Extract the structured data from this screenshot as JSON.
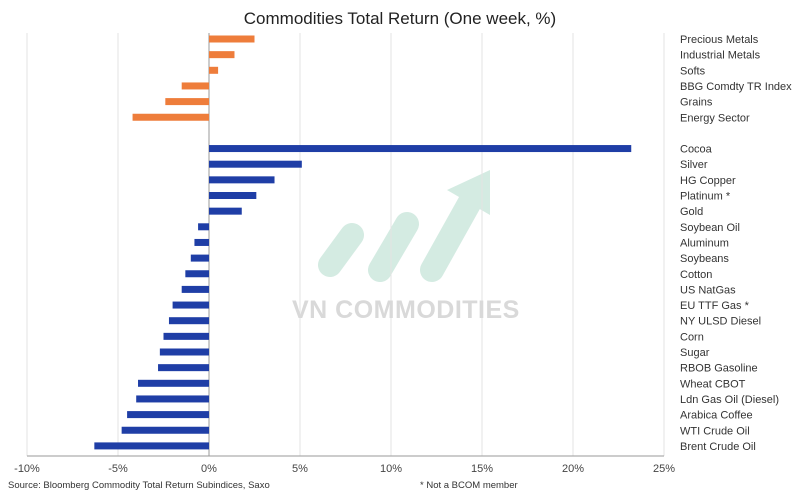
{
  "watermark_text": "VN COMMODITIES",
  "colors": {
    "group1": "#EE7D3B",
    "group2": "#1F3EA6",
    "grid": "#E3E3E3",
    "axis": "#9A9A9A",
    "watermark": "#D4EBE2"
  },
  "footer": {
    "source": "Source: Bloomberg Commodity Total Return Subindices, Saxo",
    "note": "* Not a BCOM member"
  },
  "chart_data": {
    "type": "bar",
    "orientation": "horizontal",
    "title": "Commodities Total Return (One week, %)",
    "xlim": [
      -10,
      25
    ],
    "x_ticks": [
      "-10%",
      "-5%",
      "0%",
      "5%",
      "10%",
      "15%",
      "20%",
      "25%"
    ],
    "grid": true,
    "groups": [
      {
        "categories": [
          "Precious Metals",
          "Industrial Metals",
          "Softs",
          "BBG Comdty TR Index",
          "Grains",
          "Energy Sector"
        ],
        "values": [
          2.5,
          1.4,
          0.5,
          -1.5,
          -2.4,
          -4.2
        ]
      },
      {
        "categories": [
          "Cocoa",
          "Silver",
          "HG Copper",
          "Platinum *",
          "Gold",
          "Soybean Oil",
          "Aluminum",
          "Soybeans",
          "Cotton",
          "US NatGas",
          "EU TTF Gas *",
          "NY ULSD Diesel",
          "Corn",
          "Sugar",
          "RBOB Gasoline",
          "Wheat CBOT",
          "Ldn Gas Oil (Diesel)",
          "Arabica Coffee",
          "WTI Crude Oil",
          "Brent Crude Oil"
        ],
        "values": [
          23.2,
          5.1,
          3.6,
          2.6,
          1.8,
          -0.6,
          -0.8,
          -1.0,
          -1.3,
          -1.5,
          -2.0,
          -2.2,
          -2.5,
          -2.7,
          -2.8,
          -3.9,
          -4.0,
          -4.5,
          -4.8,
          -6.3
        ]
      }
    ]
  }
}
